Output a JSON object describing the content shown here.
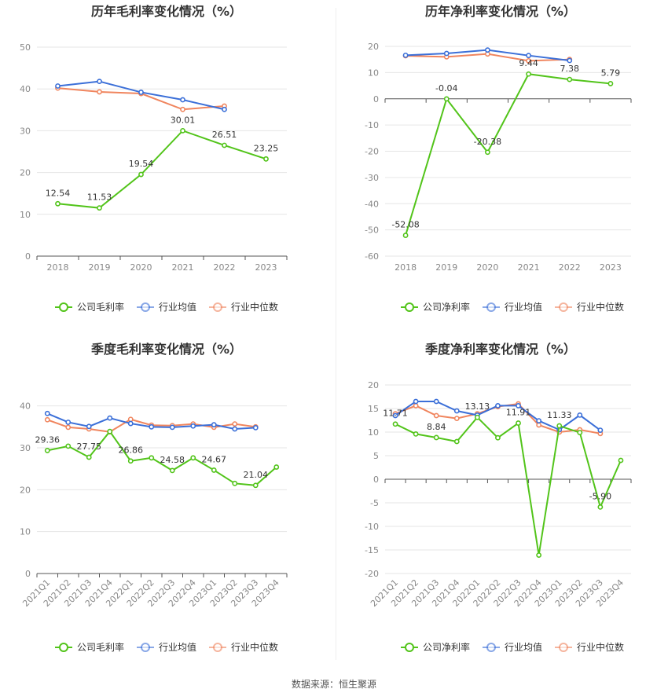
{
  "source_label": "数据来源：恒生聚源",
  "chart_data": [
    {
      "id": "annual-gross",
      "type": "line",
      "title": "历年毛利率变化情况（%）",
      "categories": [
        "2018",
        "2019",
        "2020",
        "2021",
        "2022",
        "2023"
      ],
      "yticks": [
        0,
        10,
        20,
        30,
        40,
        50
      ],
      "ylim": [
        0,
        50
      ],
      "grid": true,
      "legend_position": "bottom",
      "series": [
        {
          "name": "公司毛利率",
          "color": "#52c41a",
          "values": [
            12.54,
            11.53,
            19.54,
            30.01,
            26.51,
            23.25
          ],
          "labels": [
            "12.54",
            "11.53",
            "19.54",
            "30.01",
            "26.51",
            "23.25"
          ]
        },
        {
          "name": "行业均值",
          "color": "#3b6fd8",
          "values": [
            40.7,
            41.8,
            39.2,
            37.4,
            35.1,
            null
          ]
        },
        {
          "name": "行业中位数",
          "color": "#f0855e",
          "values": [
            40.2,
            39.3,
            38.9,
            35.1,
            35.9,
            null
          ]
        }
      ]
    },
    {
      "id": "annual-net",
      "type": "line",
      "title": "历年净利率变化情况（%）",
      "categories": [
        "2018",
        "2019",
        "2020",
        "2021",
        "2022",
        "2023"
      ],
      "yticks": [
        -60,
        -50,
        -40,
        -30,
        -20,
        -10,
        0,
        10,
        20
      ],
      "ylim": [
        -60,
        20
      ],
      "grid": true,
      "legend_position": "bottom",
      "series": [
        {
          "name": "公司净利率",
          "color": "#52c41a",
          "values": [
            -52.08,
            -0.04,
            -20.38,
            9.44,
            7.38,
            5.79
          ],
          "labels": [
            "-52.08",
            "-0.04",
            "-20.38",
            "9.44",
            "7.38",
            "5.79"
          ]
        },
        {
          "name": "行业均值",
          "color": "#3b6fd8",
          "values": [
            16.6,
            17.3,
            18.6,
            16.5,
            14.6,
            null
          ]
        },
        {
          "name": "行业中位数",
          "color": "#f0855e",
          "values": [
            16.4,
            16.0,
            17.1,
            14.5,
            15.0,
            null
          ]
        }
      ]
    },
    {
      "id": "quarterly-gross",
      "type": "line",
      "title": "季度毛利率变化情况（%）",
      "categories": [
        "2021Q1",
        "2021Q2",
        "2021Q3",
        "2021Q4",
        "2022Q1",
        "2022Q2",
        "2022Q3",
        "2022Q4",
        "2023Q1",
        "2023Q2",
        "2023Q3",
        "2023Q4"
      ],
      "yticks": [
        0,
        10,
        20,
        30,
        40
      ],
      "ylim": [
        0,
        45
      ],
      "grid": true,
      "legend_position": "bottom",
      "series": [
        {
          "name": "公司毛利率",
          "color": "#52c41a",
          "values": [
            29.36,
            30.4,
            27.75,
            33.9,
            26.86,
            27.6,
            24.58,
            27.6,
            24.67,
            21.5,
            21.04,
            25.4
          ],
          "labels": [
            "29.36",
            "",
            "27.75",
            "",
            "26.86",
            "",
            "24.58",
            "",
            "24.67",
            "",
            "21.04",
            ""
          ]
        },
        {
          "name": "行业均值",
          "color": "#3b6fd8",
          "values": [
            38.2,
            36.1,
            35.1,
            37.1,
            35.8,
            35.0,
            34.9,
            35.2,
            35.5,
            34.5,
            34.8,
            null
          ]
        },
        {
          "name": "行业中位数",
          "color": "#f0855e",
          "values": [
            36.7,
            34.9,
            34.5,
            33.8,
            36.8,
            35.4,
            35.3,
            35.7,
            34.9,
            35.7,
            35.0,
            null
          ]
        }
      ]
    },
    {
      "id": "quarterly-net",
      "type": "line",
      "title": "季度净利率变化情况（%）",
      "categories": [
        "2021Q1",
        "2021Q2",
        "2021Q3",
        "2021Q4",
        "2022Q1",
        "2022Q2",
        "2022Q3",
        "2022Q4",
        "2023Q1",
        "2023Q2",
        "2023Q3",
        "2023Q4"
      ],
      "yticks": [
        -20,
        -15,
        -10,
        -5,
        0,
        5,
        10,
        15,
        20
      ],
      "ylim": [
        -20,
        20
      ],
      "grid": true,
      "legend_position": "bottom",
      "series": [
        {
          "name": "公司净利率",
          "color": "#52c41a",
          "values": [
            11.71,
            9.6,
            8.84,
            8.0,
            13.13,
            8.8,
            11.91,
            -16.1,
            11.33,
            9.9,
            -5.9,
            4.0
          ],
          "labels": [
            "11.71",
            "",
            "8.84",
            "",
            "13.13",
            "",
            "11.91",
            "",
            "11.33",
            "",
            "-5.90",
            ""
          ]
        },
        {
          "name": "行业均值",
          "color": "#3b6fd8",
          "values": [
            13.5,
            16.5,
            16.5,
            14.5,
            13.6,
            15.6,
            15.6,
            12.4,
            10.5,
            13.6,
            10.4,
            null
          ]
        },
        {
          "name": "行业中位数",
          "color": "#f0855e",
          "values": [
            13.9,
            15.6,
            13.5,
            12.9,
            13.9,
            15.4,
            16.0,
            11.5,
            10.0,
            10.5,
            9.7,
            null
          ]
        }
      ]
    }
  ]
}
